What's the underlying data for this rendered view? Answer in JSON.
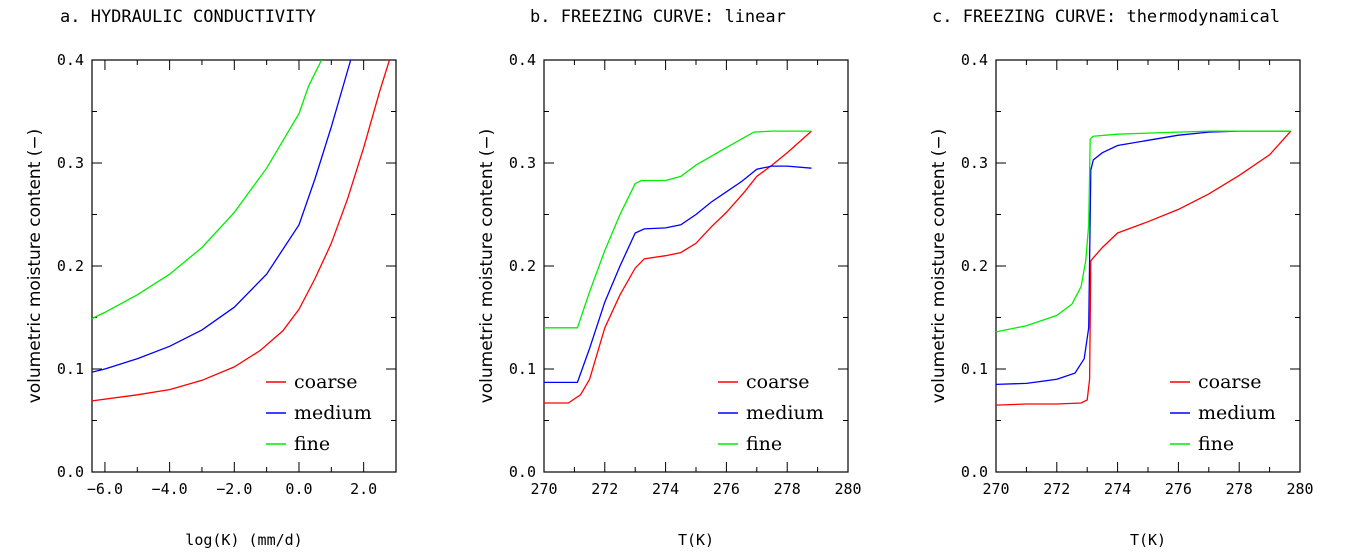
{
  "chart_data": [
    {
      "type": "line",
      "title": "a. HYDRAULIC CONDUCTIVITY",
      "xlabel": "log(K)  (mm/d)",
      "ylabel": "volumetric moisture content (−)",
      "xlim": [
        -6.4,
        3.0
      ],
      "ylim": [
        0.0,
        0.4
      ],
      "xticks": [
        -6,
        -4,
        -2,
        0,
        2
      ],
      "xtick_labels": [
        "−6.0",
        "−4.0",
        "−2.0",
        "0.0",
        "2.0"
      ],
      "yticks": [
        0.0,
        0.1,
        0.2,
        0.3,
        0.4
      ],
      "ytick_labels": [
        "0.0",
        "0.1",
        "0.2",
        "0.3",
        "0.4"
      ],
      "legend": "bottom-right",
      "series": [
        {
          "name": "coarse",
          "color": "#ff0000",
          "x": [
            -6.4,
            -5.0,
            -4.0,
            -3.0,
            -2.0,
            -1.2,
            -0.5,
            0.0,
            0.5,
            1.0,
            1.5,
            2.0,
            2.5,
            2.8
          ],
          "y": [
            0.069,
            0.075,
            0.08,
            0.089,
            0.102,
            0.118,
            0.137,
            0.158,
            0.188,
            0.222,
            0.265,
            0.315,
            0.37,
            0.4
          ]
        },
        {
          "name": "medium",
          "color": "#0000ff",
          "x": [
            -6.4,
            -6.0,
            -5.0,
            -4.0,
            -3.0,
            -2.0,
            -1.0,
            0.0,
            0.5,
            1.0,
            1.6
          ],
          "y": [
            0.097,
            0.1,
            0.11,
            0.122,
            0.138,
            0.16,
            0.192,
            0.24,
            0.285,
            0.335,
            0.4
          ]
        },
        {
          "name": "fine",
          "color": "#00ee00",
          "x": [
            -6.4,
            -6.0,
            -5.0,
            -4.0,
            -3.0,
            -2.0,
            -1.0,
            0.0,
            0.3,
            0.7
          ],
          "y": [
            0.149,
            0.155,
            0.172,
            0.192,
            0.218,
            0.252,
            0.295,
            0.348,
            0.375,
            0.4
          ]
        }
      ]
    },
    {
      "type": "line",
      "title": "b. FREEZING CURVE: linear",
      "xlabel": "T(K)",
      "ylabel": "volumetric moisture content (−)",
      "xlim": [
        270,
        280
      ],
      "ylim": [
        0.0,
        0.4
      ],
      "xticks": [
        270,
        272,
        274,
        276,
        278,
        280
      ],
      "xtick_labels": [
        "270",
        "272",
        "274",
        "276",
        "278",
        "280"
      ],
      "yticks": [
        0.0,
        0.1,
        0.2,
        0.3,
        0.4
      ],
      "ytick_labels": [
        "0.0",
        "0.1",
        "0.2",
        "0.3",
        "0.4"
      ],
      "legend": "bottom-right",
      "series": [
        {
          "name": "coarse",
          "color": "#ff0000",
          "x": [
            270,
            270.8,
            271.2,
            271.5,
            272.0,
            272.5,
            273.0,
            273.3,
            274.0,
            274.5,
            275.0,
            275.5,
            276.0,
            276.6,
            277.0,
            277.5,
            278.0,
            278.8
          ],
          "y": [
            0.067,
            0.067,
            0.075,
            0.09,
            0.14,
            0.172,
            0.198,
            0.207,
            0.21,
            0.213,
            0.222,
            0.238,
            0.252,
            0.272,
            0.287,
            0.298,
            0.31,
            0.331
          ]
        },
        {
          "name": "medium",
          "color": "#0000ff",
          "x": [
            270,
            271.1,
            271.5,
            272.0,
            272.5,
            273.0,
            273.3,
            274.0,
            274.5,
            275.0,
            275.5,
            276.0,
            276.5,
            277.0,
            277.5,
            278.0,
            278.8
          ],
          "y": [
            0.087,
            0.087,
            0.12,
            0.165,
            0.2,
            0.232,
            0.236,
            0.237,
            0.24,
            0.25,
            0.262,
            0.272,
            0.282,
            0.294,
            0.297,
            0.297,
            0.295
          ]
        },
        {
          "name": "fine",
          "color": "#00ee00",
          "x": [
            270,
            271.1,
            271.5,
            272.0,
            272.5,
            273.0,
            273.2,
            274.0,
            274.5,
            275.0,
            276.0,
            276.9,
            277.5,
            278.0,
            278.8
          ],
          "y": [
            0.14,
            0.14,
            0.175,
            0.215,
            0.25,
            0.28,
            0.283,
            0.283,
            0.287,
            0.298,
            0.315,
            0.33,
            0.331,
            0.331,
            0.331
          ]
        }
      ]
    },
    {
      "type": "line",
      "title": "c. FREEZING CURVE: thermodynamical",
      "xlabel": "T(K)",
      "ylabel": "volumetric moisture content (−)",
      "xlim": [
        270,
        280
      ],
      "ylim": [
        0.0,
        0.4
      ],
      "xticks": [
        270,
        272,
        274,
        276,
        278,
        280
      ],
      "xtick_labels": [
        "270",
        "272",
        "274",
        "276",
        "278",
        "280"
      ],
      "yticks": [
        0.0,
        0.1,
        0.2,
        0.3,
        0.4
      ],
      "ytick_labels": [
        "0.0",
        "0.1",
        "0.2",
        "0.3",
        "0.4"
      ],
      "legend": "bottom-right",
      "series": [
        {
          "name": "coarse",
          "color": "#ff0000",
          "x": [
            270,
            271.0,
            272.0,
            272.8,
            273.0,
            273.08,
            273.12,
            273.2,
            273.5,
            274.0,
            275.0,
            276.0,
            277.0,
            278.0,
            279.0,
            279.7
          ],
          "y": [
            0.065,
            0.066,
            0.066,
            0.067,
            0.07,
            0.09,
            0.205,
            0.208,
            0.218,
            0.232,
            0.243,
            0.255,
            0.27,
            0.288,
            0.308,
            0.331
          ]
        },
        {
          "name": "medium",
          "color": "#0000ff",
          "x": [
            270,
            271.0,
            272.0,
            272.6,
            272.9,
            273.05,
            273.12,
            273.2,
            273.5,
            274.0,
            275.0,
            276.0,
            277.0,
            278.0,
            279.0,
            279.7
          ],
          "y": [
            0.085,
            0.086,
            0.09,
            0.096,
            0.11,
            0.14,
            0.293,
            0.303,
            0.31,
            0.317,
            0.322,
            0.327,
            0.33,
            0.331,
            0.331,
            0.331
          ]
        },
        {
          "name": "fine",
          "color": "#00ee00",
          "x": [
            270,
            271.0,
            272.0,
            272.5,
            272.8,
            272.95,
            273.05,
            273.1,
            273.2,
            274.0,
            275.0,
            276.0,
            277.0,
            278.0,
            279.0,
            279.7
          ],
          "y": [
            0.136,
            0.142,
            0.152,
            0.163,
            0.18,
            0.205,
            0.24,
            0.323,
            0.326,
            0.328,
            0.329,
            0.33,
            0.331,
            0.331,
            0.331,
            0.331
          ]
        }
      ]
    }
  ]
}
